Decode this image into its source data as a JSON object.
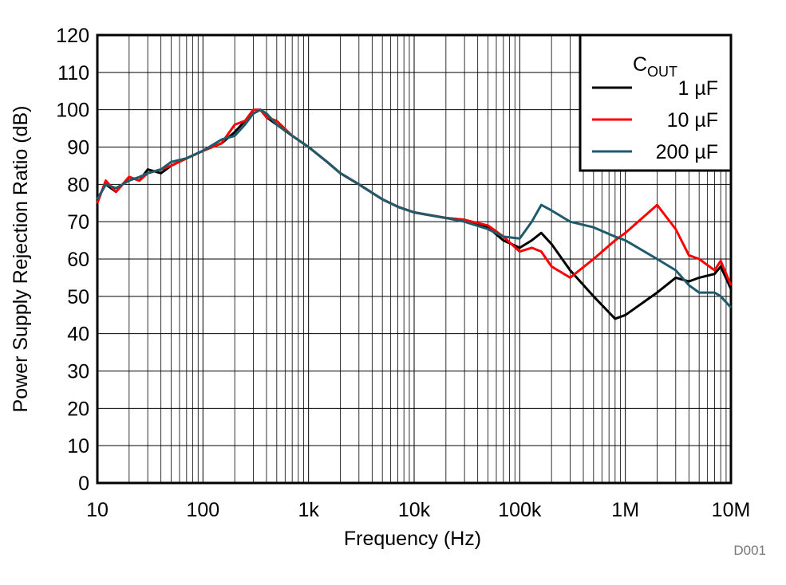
{
  "chart_data": {
    "type": "line",
    "x_label": "Frequency (Hz)",
    "y_label": "Power Supply Rejection Ratio (dB)",
    "x_log": true,
    "grid": true,
    "legend_position": "upper right",
    "legend_title": "C",
    "legend_title_sub": "OUT",
    "watermark": "D001",
    "xlim": [
      10,
      10000000
    ],
    "ylim": [
      0,
      120
    ],
    "xticks": [
      10,
      100,
      {
        "value": 1000,
        "label": "1k"
      },
      {
        "value": 10000,
        "label": "10k"
      },
      {
        "value": 100000,
        "label": "100k"
      },
      {
        "value": 1000000,
        "label": "1M"
      },
      {
        "value": 10000000,
        "label": "10M"
      }
    ],
    "yticks": [
      0,
      10,
      20,
      30,
      40,
      50,
      60,
      70,
      80,
      90,
      100,
      110,
      120
    ],
    "x": [
      10,
      12,
      15,
      20,
      25,
      30,
      40,
      50,
      70,
      100,
      150,
      200,
      250,
      300,
      350,
      400,
      500,
      700,
      1000,
      1500,
      2000,
      3000,
      5000,
      7000,
      10000,
      20000,
      30000,
      50000,
      70000,
      100000,
      130000,
      160000,
      200000,
      300000,
      500000,
      800000,
      1000000,
      2000000,
      3000000,
      4000000,
      5000000,
      7000000,
      8000000,
      10000000
    ],
    "series": [
      {
        "name": "1 µF",
        "color": "#000000",
        "values": [
          76,
          80,
          78,
          82,
          81,
          84,
          83,
          85,
          87,
          89,
          91,
          94,
          97,
          99,
          100,
          98,
          96,
          93,
          90,
          86,
          83,
          80,
          76,
          74,
          72.5,
          71,
          70.5,
          68.5,
          65,
          63,
          65,
          67,
          64,
          57,
          50,
          44,
          45,
          51,
          55,
          54,
          55,
          56,
          58,
          52
        ]
      },
      {
        "name": "10 µF",
        "color": "#ff0000",
        "values": [
          75,
          81,
          78,
          82,
          81,
          83,
          84,
          85,
          87,
          89,
          91,
          96,
          97,
          100,
          100,
          98,
          97,
          93,
          90,
          86,
          83,
          80,
          76,
          74,
          72.5,
          71,
          70.5,
          69,
          66,
          62,
          63,
          62,
          58,
          55,
          60,
          65,
          67,
          74.5,
          68,
          61,
          60,
          57,
          59.5,
          53
        ]
      },
      {
        "name": "200 µF",
        "color": "#1f5b6b",
        "values": [
          76,
          80,
          79,
          81,
          82,
          83,
          84,
          86,
          87,
          89,
          92,
          93,
          96,
          99,
          100,
          99,
          96,
          93,
          90,
          86,
          83,
          80,
          76,
          74,
          72.5,
          71,
          70,
          68,
          66,
          65.5,
          70,
          74.5,
          73,
          70,
          68.5,
          66,
          65,
          60,
          57,
          53,
          51,
          51,
          50,
          47
        ]
      }
    ]
  }
}
